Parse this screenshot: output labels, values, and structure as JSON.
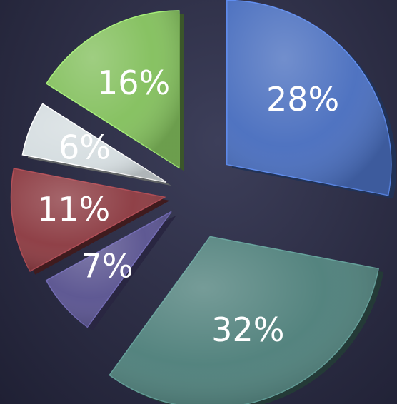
{
  "chart_data": {
    "type": "pie",
    "exploded": true,
    "style": "3d",
    "slices": [
      {
        "label": "28%",
        "value": 28,
        "color": "#4a6fbf"
      },
      {
        "label": "32%",
        "value": 32,
        "color": "#4f807b"
      },
      {
        "label": "7%",
        "value": 7,
        "color": "#5a5490"
      },
      {
        "label": "11%",
        "value": 11,
        "color": "#8c3b42"
      },
      {
        "label": "6%",
        "value": 6,
        "color": "#d5dde0"
      },
      {
        "label": "16%",
        "value": 16,
        "color": "#84c05e"
      }
    ]
  }
}
